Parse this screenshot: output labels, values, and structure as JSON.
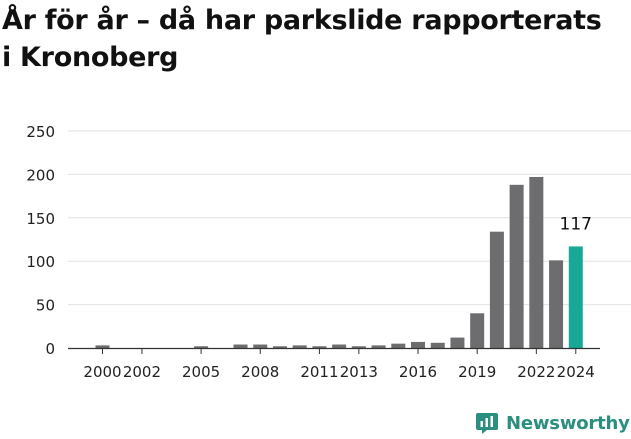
{
  "chart_data": {
    "type": "bar",
    "title_lines": [
      "År för år – då har parkslide rapporterats",
      "i Kronoberg"
    ],
    "xlabel": "",
    "ylabel": "",
    "x": [
      2000,
      2001,
      2002,
      2003,
      2004,
      2005,
      2006,
      2007,
      2008,
      2009,
      2010,
      2011,
      2012,
      2013,
      2014,
      2015,
      2016,
      2017,
      2018,
      2019,
      2020,
      2021,
      2022,
      2023,
      2024
    ],
    "values": [
      3,
      0,
      0,
      0,
      0,
      2,
      0,
      4,
      4,
      2,
      3,
      2,
      4,
      2,
      3,
      5,
      7,
      6,
      12,
      40,
      134,
      188,
      197,
      101,
      117
    ],
    "x_tick_labels": [
      "2000",
      "2002",
      "2005",
      "2008",
      "2011",
      "2013",
      "2016",
      "2019",
      "2022",
      "2024"
    ],
    "x_tick_years": [
      2000,
      2002,
      2005,
      2008,
      2011,
      2013,
      2016,
      2019,
      2022,
      2024
    ],
    "y_ticks": [
      0,
      50,
      100,
      150,
      200,
      250
    ],
    "ylim": [
      0,
      250
    ],
    "grid": true,
    "highlight": {
      "x": 2024,
      "label": "117"
    },
    "colors": {
      "bar": "#6d6d70",
      "highlight": "#17a898",
      "grid": "#e2e2e2",
      "axis": "#333333"
    }
  },
  "brand": {
    "name": "Newsworthy",
    "icon": "newsworthy-logo-icon",
    "color": "#2a8f7f"
  }
}
